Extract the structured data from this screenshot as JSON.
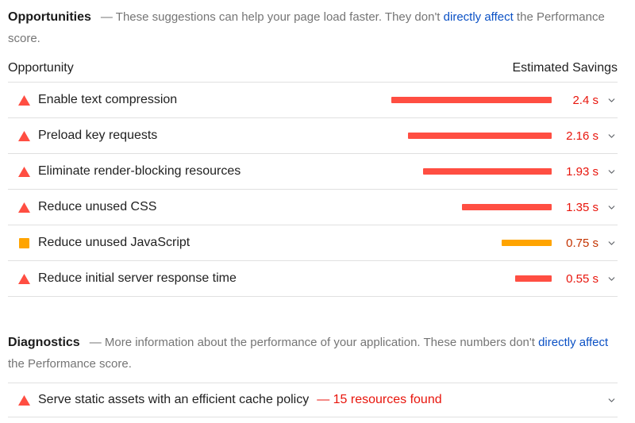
{
  "colors": {
    "fail_icon": "#ff4e42",
    "fail_text": "#e8150c",
    "average_icon": "#ffa400",
    "average_text": "#c33300",
    "link_blue": "#0b51c5",
    "muted_gray": "#757575",
    "divider": "#e0e0e0"
  },
  "icons": {
    "severity_fail": "triangle-up-icon",
    "severity_average": "square-icon",
    "expand": "chevron-down-icon"
  },
  "opportunities": {
    "title": "Opportunities",
    "desc_before": "— These suggestions can help your page load faster. They don't ",
    "desc_link": "directly affect",
    "desc_after": " the Performance score.",
    "columns": {
      "opportunity": "Opportunity",
      "savings": "Estimated Savings"
    },
    "px_per_second_note": "bar length proportional to savings",
    "rows": [
      {
        "label": "Enable text compression",
        "savings": "2.4 s",
        "savings_seconds": 2.4,
        "severity": "fail"
      },
      {
        "label": "Preload key requests",
        "savings": "2.16 s",
        "savings_seconds": 2.16,
        "severity": "fail"
      },
      {
        "label": "Eliminate render-blocking resources",
        "savings": "1.93 s",
        "savings_seconds": 1.93,
        "severity": "fail"
      },
      {
        "label": "Reduce unused CSS",
        "savings": "1.35 s",
        "savings_seconds": 1.35,
        "severity": "fail"
      },
      {
        "label": "Reduce unused JavaScript",
        "savings": "0.75 s",
        "savings_seconds": 0.75,
        "severity": "average"
      },
      {
        "label": "Reduce initial server response time",
        "savings": "0.55 s",
        "savings_seconds": 0.55,
        "severity": "fail"
      }
    ]
  },
  "diagnostics": {
    "title": "Diagnostics",
    "desc_before": "— More information about the performance of your application. These numbers don't ",
    "desc_link": "directly affect",
    "desc_after": " the Performance score.",
    "rows": [
      {
        "label": "Serve static assets with an efficient cache policy",
        "annotation": "— 15 resources found",
        "severity": "fail"
      }
    ]
  }
}
